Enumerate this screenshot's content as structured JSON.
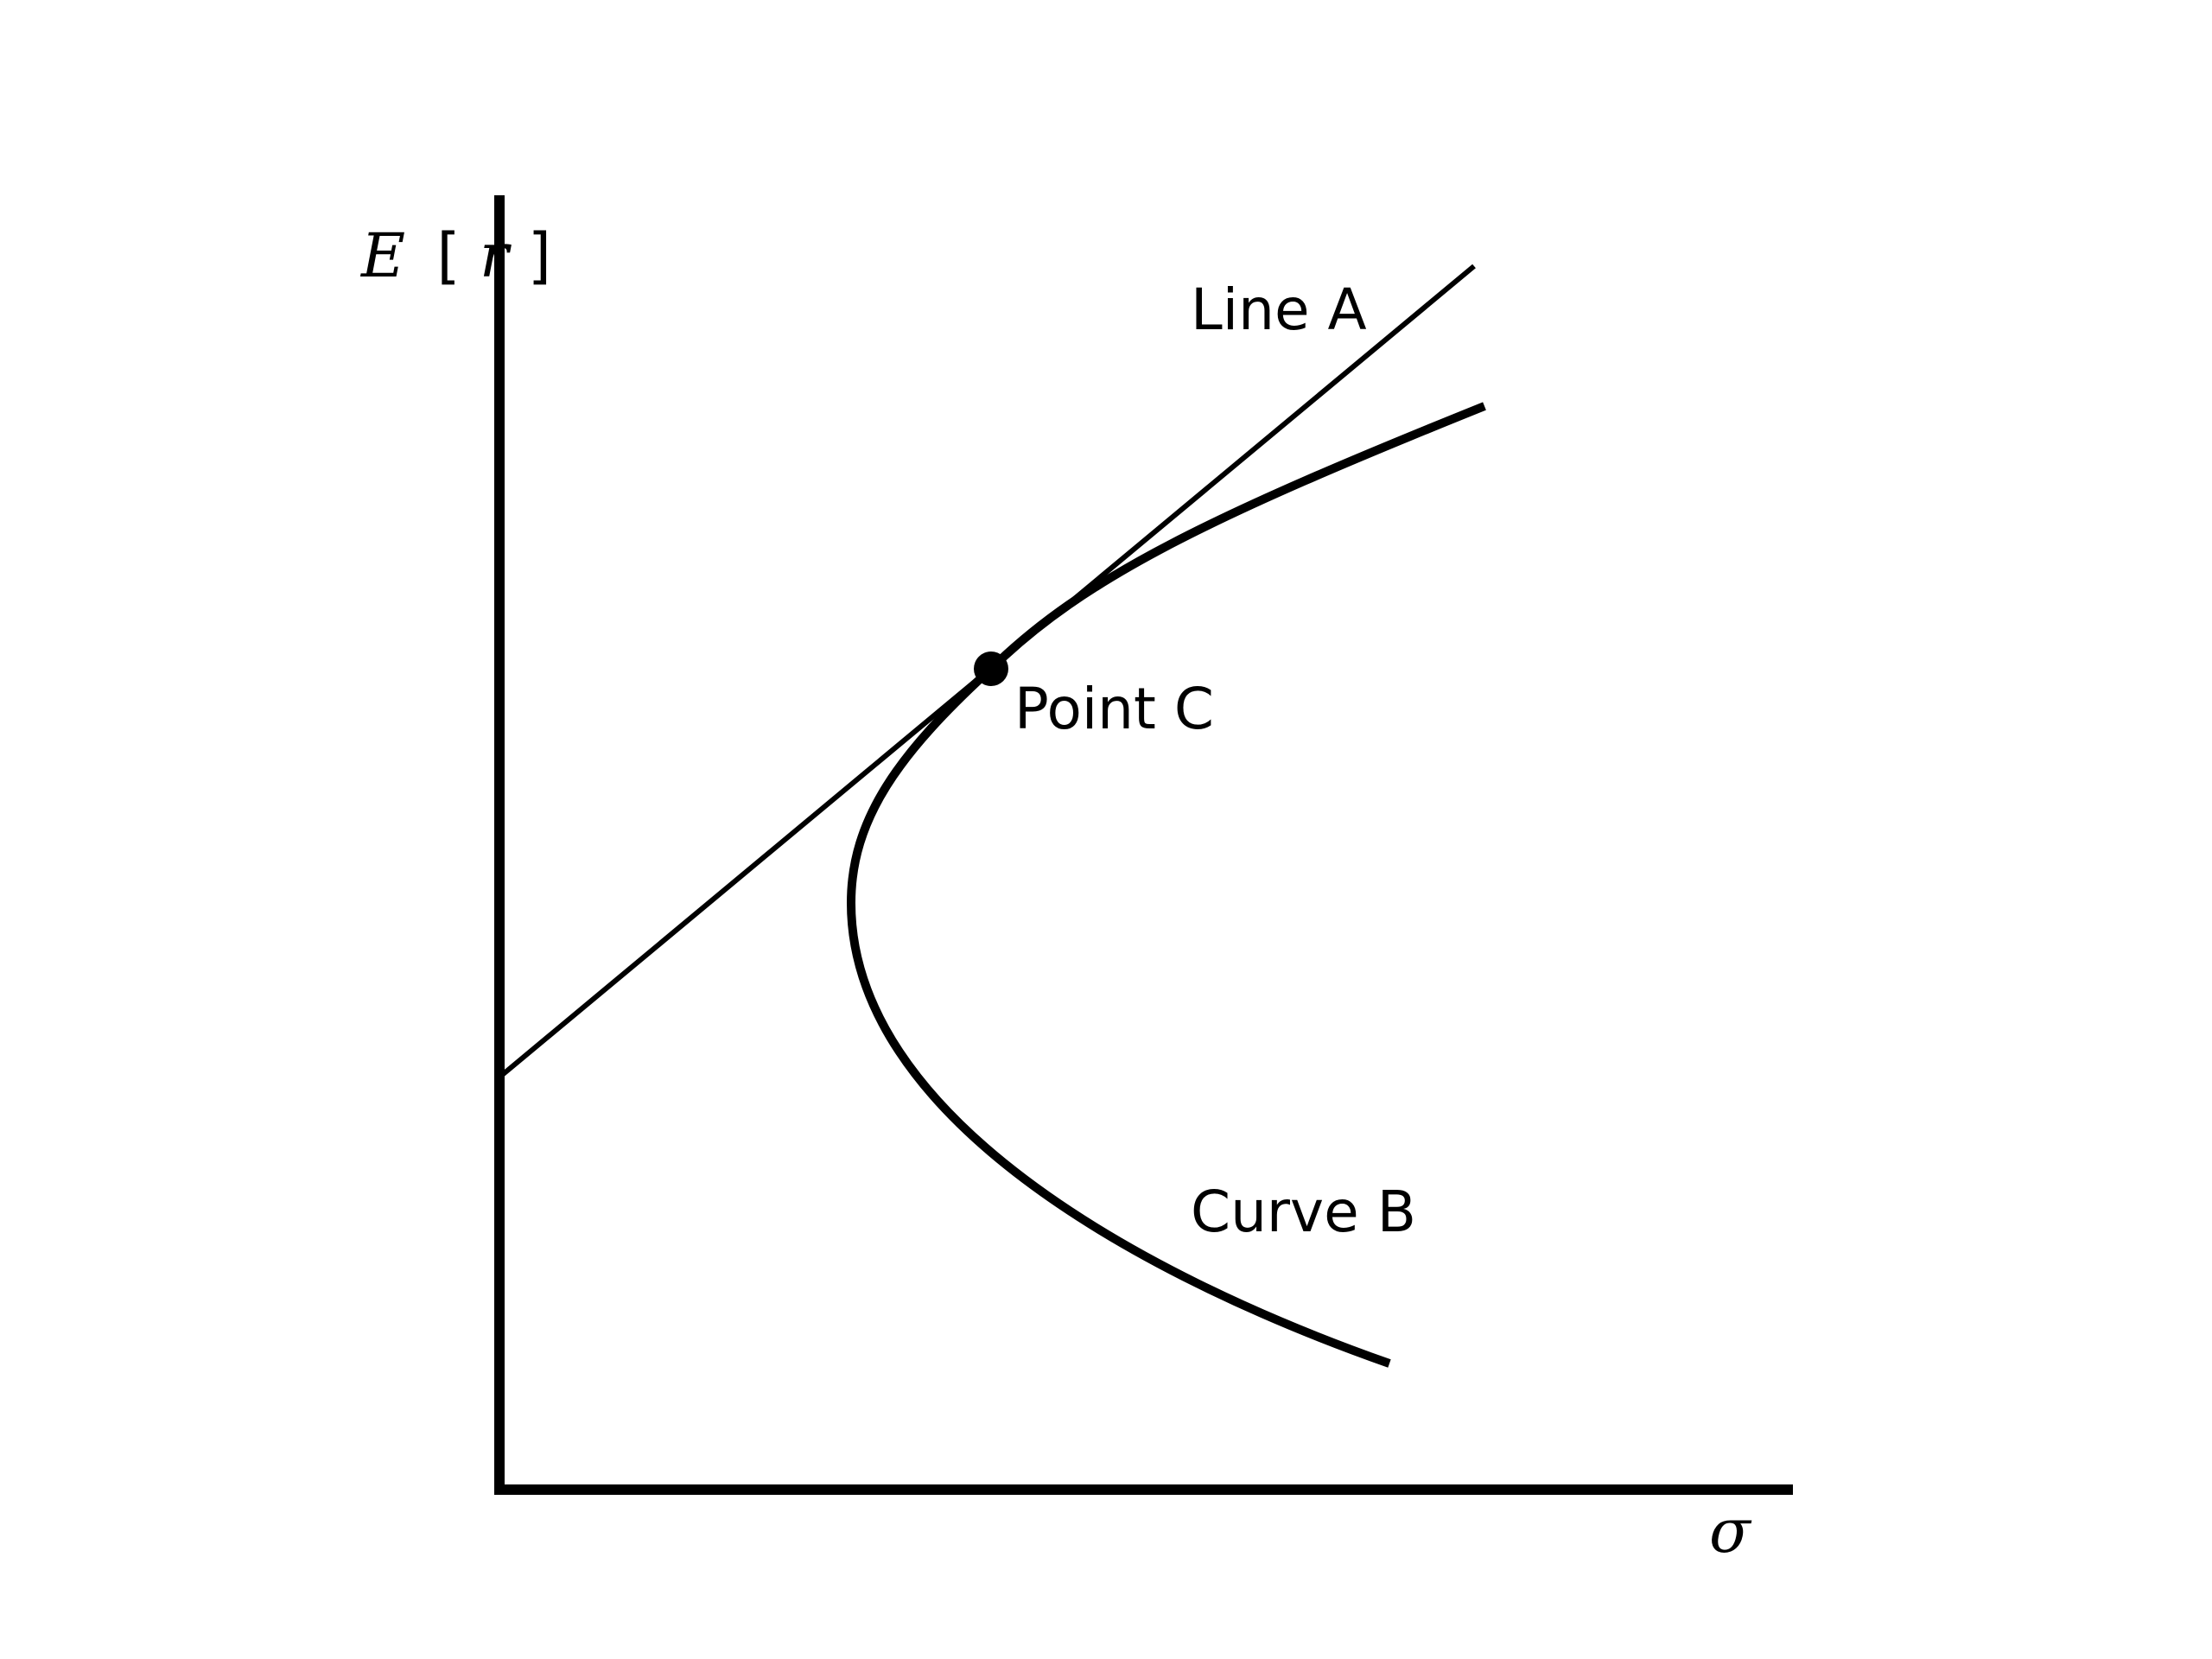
{
  "diagram": {
    "y_axis_label": {
      "prefix": "E",
      "open_bracket": "[",
      "variable": "r",
      "close_bracket": "]"
    },
    "x_axis_label": "σ",
    "line_label": "Line A",
    "curve_label": "Curve B",
    "point_label": "Point C",
    "colors": {
      "stroke": "#000000",
      "background": "#ffffff"
    }
  }
}
